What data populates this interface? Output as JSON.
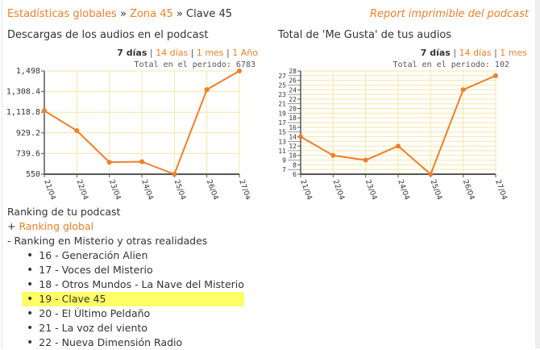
{
  "breadcrumb": {
    "items": [
      "Estadísticas globales",
      "Zona 45"
    ],
    "current": "Clave 45",
    "sep": " » "
  },
  "report_link": "Report imprimible del podcast",
  "charts_meta": {
    "accent": "#f07f2a",
    "grid": "#f5e6a8"
  },
  "chart_data": [
    {
      "type": "line",
      "title": "Descargas de los audios en el podcast",
      "ranges": {
        "active": "7 días",
        "links": [
          "14 días",
          "1 mes",
          "1 Año"
        ]
      },
      "total_label": "Total en el periodo: 6783",
      "categories": [
        "21/04",
        "22/04",
        "23/04",
        "24/04",
        "25/04",
        "26/04",
        "27/04"
      ],
      "values": [
        1133,
        950,
        660,
        665,
        550,
        1327,
        1498
      ],
      "yticks": [
        "550",
        "739.6",
        "929.2",
        "1,118.8",
        "1,308.4",
        "1,498"
      ],
      "ylim": [
        550,
        1498
      ]
    },
    {
      "type": "line",
      "title": "Total de 'Me Gusta' de tus audios",
      "ranges": {
        "active": "7 días",
        "links": [
          "14 días",
          "1 mes"
        ]
      },
      "total_label": "Total en el periodo: 102",
      "categories": [
        "21/04",
        "22/04",
        "23/04",
        "24/04",
        "25/04",
        "26/04",
        "27/04"
      ],
      "values": [
        14,
        10,
        9,
        12,
        6,
        24,
        27
      ],
      "yticks": [
        "6",
        "7",
        "8",
        "9",
        "10",
        "11",
        "12",
        "13",
        "14",
        "15",
        "16",
        "17",
        "18",
        "19",
        "20",
        "21",
        "22",
        "23",
        "24",
        "25",
        "26",
        "27",
        "28"
      ],
      "ylim": [
        6,
        28
      ]
    }
  ],
  "ranking": {
    "title": "Ranking de tu podcast",
    "global_prefix": "+ ",
    "global": "Ranking global",
    "category": "- Ranking en Misterio y otras realidades",
    "items": [
      "16 - Generación Alien",
      "17 - Voces del Misterio",
      "18 - Otros Mundos - La Nave del Misterio",
      "19 - Clave 45",
      "20 - El Último Peldaño",
      "21 - La voz del viento",
      "22 - Nueva Dimensión Radio"
    ],
    "highlight_index": 3
  }
}
